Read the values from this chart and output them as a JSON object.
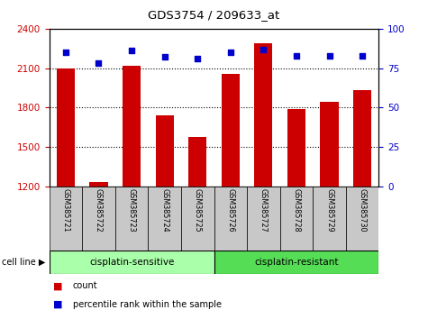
{
  "title": "GDS3754 / 209633_at",
  "samples": [
    "GSM385721",
    "GSM385722",
    "GSM385723",
    "GSM385724",
    "GSM385725",
    "GSM385726",
    "GSM385727",
    "GSM385728",
    "GSM385729",
    "GSM385730"
  ],
  "counts": [
    2095,
    1235,
    2120,
    1740,
    1575,
    2060,
    2290,
    1790,
    1845,
    1930
  ],
  "percentile_ranks": [
    85,
    78,
    86,
    82,
    81,
    85,
    87,
    83,
    83,
    83
  ],
  "bar_color": "#cc0000",
  "dot_color": "#0000cc",
  "ylim_left": [
    1200,
    2400
  ],
  "ylim_right": [
    0,
    100
  ],
  "yticks_left": [
    1200,
    1500,
    1800,
    2100,
    2400
  ],
  "yticks_right": [
    0,
    25,
    50,
    75,
    100
  ],
  "groups": [
    {
      "label": "cisplatin-sensitive",
      "indices": [
        0,
        1,
        2,
        3,
        4
      ],
      "color": "#aaffaa"
    },
    {
      "label": "cisplatin-resistant",
      "indices": [
        5,
        6,
        7,
        8,
        9
      ],
      "color": "#55dd55"
    }
  ],
  "legend_count_label": "count",
  "legend_pct_label": "percentile rank within the sample",
  "bar_color_left_axis": "#cc0000",
  "right_axis_color": "#0000cc",
  "gridline_values": [
    1500,
    1800,
    2100
  ],
  "background_plot": "#ffffff",
  "xtick_bg": "#c8c8c8",
  "bar_bottom": 1200
}
